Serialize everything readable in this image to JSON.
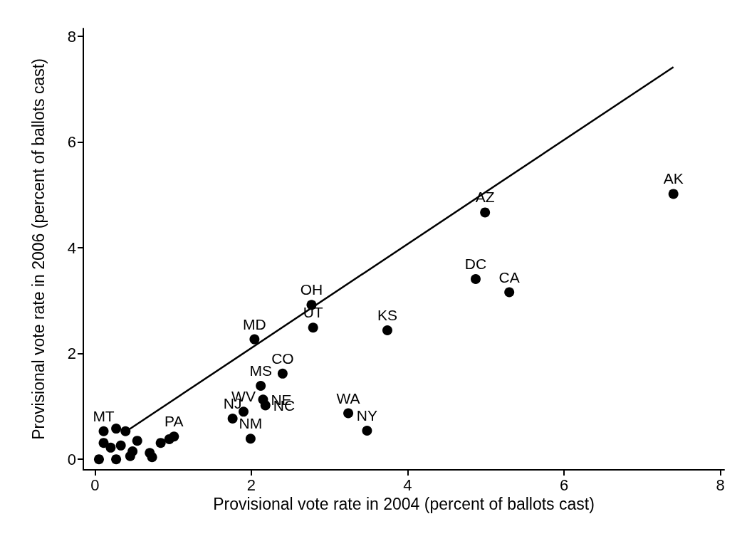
{
  "chart_data": {
    "type": "scatter",
    "xlabel": "Provisional vote rate in 2004 (percent of ballots cast)",
    "ylabel": "Provisional vote rate in 2006 (percent of ballots cast)",
    "xlim": [
      -0.15,
      8.05
    ],
    "ylim": [
      -0.2,
      8.15
    ],
    "xticks": [
      0,
      2,
      4,
      6,
      8
    ],
    "yticks": [
      0,
      2,
      4,
      6,
      8
    ],
    "grid": false,
    "marker": "circle",
    "series": [
      {
        "color": "#000000",
        "x": [
          7.4,
          4.99,
          4.87,
          5.3,
          3.74,
          2.77,
          2.79,
          2.04,
          2.4,
          2.12,
          2.15,
          2.18,
          1.9,
          1.76,
          1.99,
          3.24,
          3.48,
          0.11,
          1.01,
          0.95,
          0.84,
          0.7,
          0.73,
          0.27,
          0.39,
          0.05,
          0.27,
          0.45,
          0.2,
          0.11,
          0.33,
          0.54,
          0.48
        ],
        "values": [
          5.02,
          4.67,
          3.41,
          3.16,
          2.44,
          2.92,
          2.49,
          2.27,
          1.62,
          1.39,
          1.13,
          1.02,
          0.9,
          0.77,
          0.39,
          0.87,
          0.54,
          0.53,
          0.43,
          0.38,
          0.31,
          0.12,
          0.04,
          0.58,
          0.53,
          0.0,
          0.0,
          0.06,
          0.22,
          0.31,
          0.26,
          0.35,
          0.15
        ],
        "value_labels": [
          "AK",
          "AZ",
          "DC",
          "CA",
          "KS",
          "OH",
          "UT",
          "MD",
          "CO",
          "MS",
          "NE",
          "NC",
          "WV",
          "NJ",
          "NM",
          "WA",
          "NY",
          "MT",
          "PA",
          null,
          null,
          null,
          null,
          null,
          null,
          null,
          null,
          null,
          null,
          null,
          null,
          null,
          null
        ]
      },
      {
        "type": "line",
        "color": "#000000",
        "line_style": "solid",
        "marker": "none",
        "x": [
          0.36,
          7.4
        ],
        "values": [
          0.49,
          7.42
        ]
      }
    ]
  }
}
